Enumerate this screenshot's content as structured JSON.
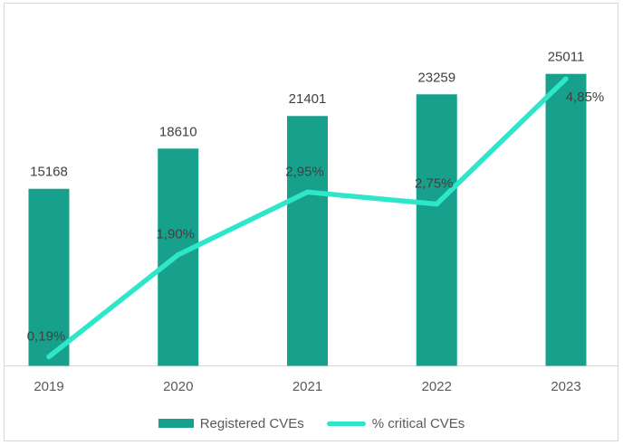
{
  "page": {
    "background": "#FFFFFF",
    "frame_border_color": "#D7D7D7"
  },
  "chart_data": {
    "type": "combo",
    "categories": [
      "2019",
      "2020",
      "2021",
      "2022",
      "2023"
    ],
    "series": [
      {
        "name": "Registered CVEs",
        "type": "bar",
        "color": "#17A08C",
        "values": [
          15168,
          18610,
          21401,
          23259,
          25011
        ],
        "labels": [
          "15168",
          "18610",
          "21401",
          "23259",
          "25011"
        ]
      },
      {
        "name": "% critical CVEs",
        "type": "line",
        "color": "#2EE6C9",
        "values": [
          0.19,
          1.9,
          2.95,
          2.75,
          4.85
        ],
        "labels": [
          "0,19%",
          "1,90%",
          "2,95%",
          "2,75%",
          "4,85%"
        ],
        "label_positions": [
          "above",
          "above",
          "above",
          "above",
          "below-right"
        ]
      }
    ],
    "title": "",
    "xlabel": "",
    "ylabel": "",
    "bar_ylim": [
      0,
      31300
    ],
    "line_ylim": [
      0,
      6.17
    ],
    "grid": false,
    "legend_position": "bottom",
    "data_label_color": "#404040",
    "axis_label_color": "#595959",
    "axis_line_color": "#D9D9D9"
  }
}
